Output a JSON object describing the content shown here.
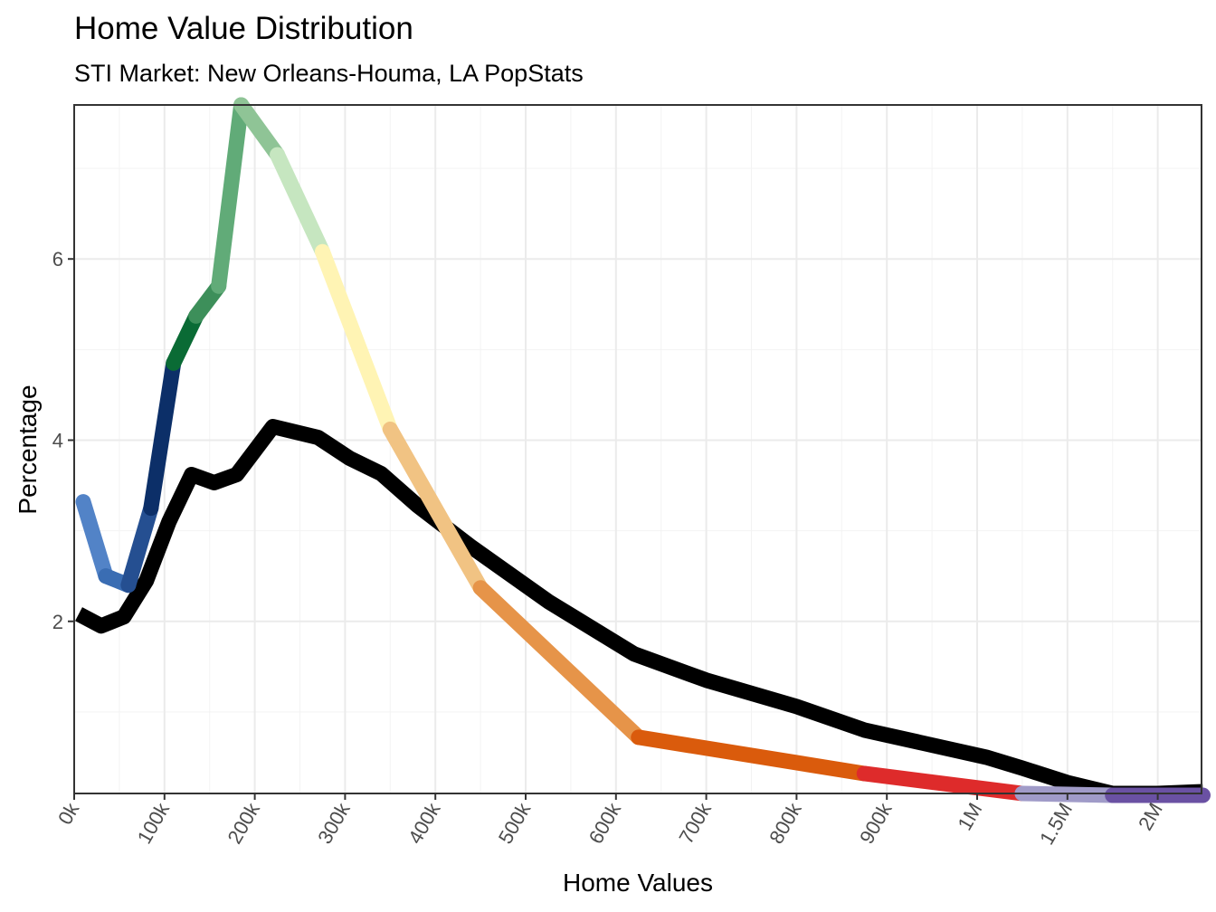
{
  "chart_data": {
    "type": "line",
    "title": "Home Value Distribution",
    "subtitle": "STI Market: New Orleans-Houma, LA PopStats",
    "xlabel": "Home Values",
    "ylabel": "Percentage",
    "x_tick_labels": [
      "0k",
      "100k",
      "200k",
      "300k",
      "400k",
      "500k",
      "600k",
      "700k",
      "800k",
      "900k",
      "1M",
      "1.5M",
      "2M"
    ],
    "y_ticks": [
      2,
      4,
      6
    ],
    "ylim": [
      0.1,
      7.7
    ],
    "grid": true,
    "legend": "none",
    "series": [
      {
        "color": "#000000",
        "points": [
          {
            "x": "5k",
            "y": 2.08
          },
          {
            "x": "30k",
            "y": 1.95
          },
          {
            "x": "55k",
            "y": 2.05
          },
          {
            "x": "80k",
            "y": 2.45
          },
          {
            "x": "105k",
            "y": 3.1
          },
          {
            "x": "130k",
            "y": 3.62
          },
          {
            "x": "155k",
            "y": 3.53
          },
          {
            "x": "180k",
            "y": 3.62
          },
          {
            "x": "220k",
            "y": 4.15
          },
          {
            "x": "270k",
            "y": 4.03
          },
          {
            "x": "305k",
            "y": 3.8
          },
          {
            "x": "340k",
            "y": 3.63
          },
          {
            "x": "380k",
            "y": 3.28
          },
          {
            "x": "440k",
            "y": 2.82
          },
          {
            "x": "525k",
            "y": 2.22
          },
          {
            "x": "620k",
            "y": 1.64
          },
          {
            "x": "700k",
            "y": 1.35
          },
          {
            "x": "800k",
            "y": 1.06
          },
          {
            "x": "875k",
            "y": 0.8
          },
          {
            "x": "1.05M",
            "y": 0.5
          },
          {
            "x": "1.25M",
            "y": 0.38
          },
          {
            "x": "1.5M",
            "y": 0.22
          },
          {
            "x": "1.75M",
            "y": 0.1
          },
          {
            "x": "2M",
            "y": 0.1
          },
          {
            "x": "2.25M",
            "y": 0.12
          }
        ]
      },
      {
        "color": "multicolor",
        "segments": [
          {
            "color": "#5283c7",
            "from": {
              "x": "10k",
              "y": 3.32
            },
            "to": {
              "x": "35k",
              "y": 2.5
            }
          },
          {
            "color": "#3a6db3",
            "from": {
              "x": "35k",
              "y": 2.5
            },
            "to": {
              "x": "60k",
              "y": 2.4
            }
          },
          {
            "color": "#254f91",
            "from": {
              "x": "60k",
              "y": 2.4
            },
            "to": {
              "x": "85k",
              "y": 3.25
            }
          },
          {
            "color": "#0c2f68",
            "from": {
              "x": "85k",
              "y": 3.25
            },
            "to": {
              "x": "110k",
              "y": 4.85
            }
          },
          {
            "color": "#0a6b35",
            "from": {
              "x": "110k",
              "y": 4.85
            },
            "to": {
              "x": "135k",
              "y": 5.37
            }
          },
          {
            "color": "#3d8f5a",
            "from": {
              "x": "135k",
              "y": 5.37
            },
            "to": {
              "x": "160k",
              "y": 5.7
            }
          },
          {
            "color": "#61ab78",
            "from": {
              "x": "160k",
              "y": 5.7
            },
            "to": {
              "x": "185k",
              "y": 7.7
            }
          },
          {
            "color": "#8fc496",
            "from": {
              "x": "185k",
              "y": 7.7
            },
            "to": {
              "x": "225k",
              "y": 7.15
            }
          },
          {
            "color": "#c6e6c0",
            "from": {
              "x": "225k",
              "y": 7.15
            },
            "to": {
              "x": "275k",
              "y": 6.08
            }
          },
          {
            "color": "#fff4b4",
            "from": {
              "x": "275k",
              "y": 6.08
            },
            "to": {
              "x": "350k",
              "y": 4.12
            }
          },
          {
            "color": "#f1c383",
            "from": {
              "x": "350k",
              "y": 4.12
            },
            "to": {
              "x": "450k",
              "y": 2.37
            }
          },
          {
            "color": "#e69449",
            "from": {
              "x": "450k",
              "y": 2.37
            },
            "to": {
              "x": "625k",
              "y": 0.72
            }
          },
          {
            "color": "#da5b0c",
            "from": {
              "x": "625k",
              "y": 0.72
            },
            "to": {
              "x": "875k",
              "y": 0.32
            }
          },
          {
            "color": "#de2b2b",
            "from": {
              "x": "875k",
              "y": 0.32
            },
            "to": {
              "x": "1.25M",
              "y": 0.1
            }
          },
          {
            "color": "#a09bc8",
            "from": {
              "x": "1.25M",
              "y": 0.1
            },
            "to": {
              "x": "1.75M",
              "y": 0.08
            }
          },
          {
            "color": "#6a51a3",
            "from": {
              "x": "1.75M",
              "y": 0.08
            },
            "to": {
              "x": "2.25M",
              "y": 0.08
            }
          }
        ]
      }
    ]
  }
}
